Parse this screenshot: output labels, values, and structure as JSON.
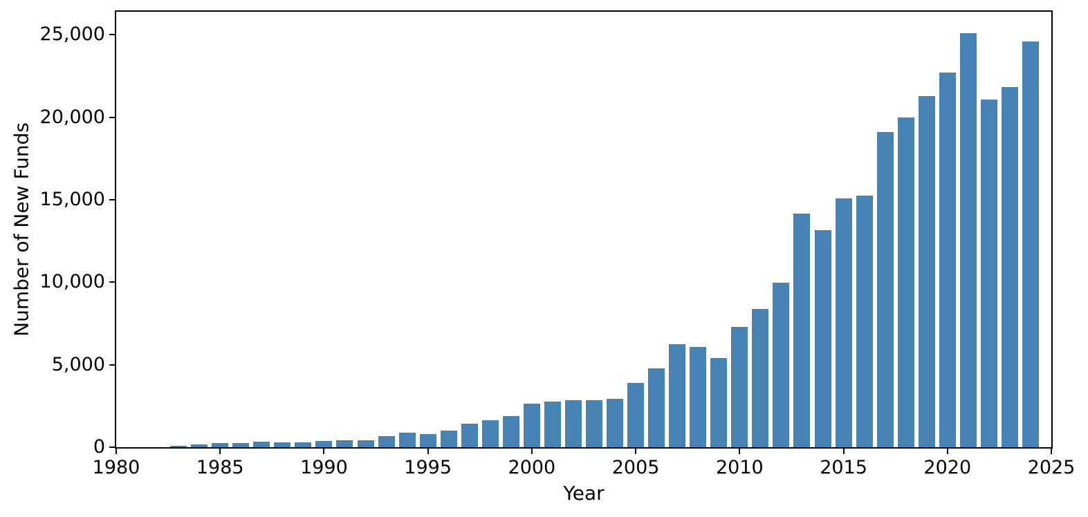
{
  "chart_data": {
    "type": "bar",
    "title": "",
    "xlabel": "Year",
    "ylabel": "Number of New Funds",
    "bar_color": "#4682B4",
    "grid": false,
    "legend": null,
    "xlim": [
      1980,
      2025
    ],
    "ylim": [
      0,
      26390
    ],
    "x_ticks": [
      "1980",
      "1985",
      "1990",
      "1995",
      "2000",
      "2005",
      "2010",
      "2015",
      "2020",
      "2025"
    ],
    "y_ticks": [
      {
        "value": 0,
        "label": "0"
      },
      {
        "value": 5000,
        "label": "5,000"
      },
      {
        "value": 10000,
        "label": "10,000"
      },
      {
        "value": 15000,
        "label": "15,000"
      },
      {
        "value": 20000,
        "label": "20,000"
      },
      {
        "value": 25000,
        "label": "25,000"
      }
    ],
    "categories": [
      1983,
      1984,
      1985,
      1986,
      1987,
      1988,
      1989,
      1990,
      1991,
      1992,
      1993,
      1994,
      1995,
      1996,
      1997,
      1998,
      1999,
      2000,
      2001,
      2002,
      2003,
      2004,
      2005,
      2006,
      2007,
      2008,
      2009,
      2010,
      2011,
      2012,
      2013,
      2014,
      2015,
      2016,
      2017,
      2018,
      2019,
      2020,
      2021,
      2022,
      2023,
      2024
    ],
    "values": [
      80,
      180,
      270,
      240,
      340,
      310,
      300,
      370,
      400,
      440,
      680,
      890,
      810,
      1010,
      1420,
      1630,
      1900,
      2660,
      2750,
      2870,
      2850,
      2950,
      3910,
      4760,
      6260,
      6080,
      5420,
      7270,
      8380,
      9950,
      14180,
      13150,
      15100,
      15250,
      19100,
      19980,
      21270,
      22700,
      25100,
      21060,
      21820,
      24600
    ]
  }
}
